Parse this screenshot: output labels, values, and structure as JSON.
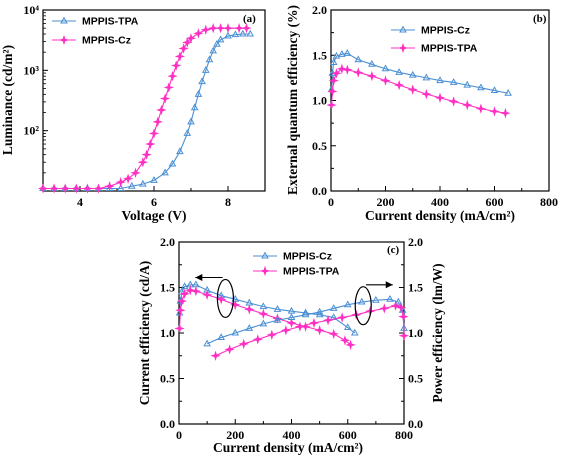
{
  "colors": {
    "tpa_cz_blue": "#4a8fd4",
    "magenta": "#ff2fc4"
  },
  "chart_data": [
    {
      "id": "a",
      "type": "line",
      "panel_label": "(a)",
      "xlabel": "Voltage (V)",
      "ylabel": "Luminance (cd/m²)",
      "xlim": [
        3,
        9
      ],
      "ylim": [
        10,
        10000
      ],
      "yscale": "log",
      "xticks": [
        "4",
        "6",
        "8"
      ],
      "yticks": [
        "10²",
        "10³",
        "10⁴"
      ],
      "legend_position": "top-left",
      "series": [
        {
          "name": "MPPIS-TPA",
          "color": "#4a8fd4",
          "marker": "triangle",
          "x": [
            3.0,
            3.3,
            3.6,
            3.9,
            4.2,
            4.5,
            4.8,
            5.1,
            5.4,
            5.7,
            6.0,
            6.3,
            6.5,
            6.7,
            6.9,
            7.0,
            7.1,
            7.2,
            7.3,
            7.4,
            7.5,
            7.6,
            7.7,
            7.8,
            8.0,
            8.2,
            8.4,
            8.6
          ],
          "y": [
            11,
            11,
            11,
            11,
            11,
            11,
            11,
            11,
            12,
            13,
            15,
            20,
            28,
            45,
            90,
            140,
            240,
            400,
            650,
            1000,
            1500,
            2100,
            2700,
            3200,
            3700,
            3900,
            4000,
            4000
          ]
        },
        {
          "name": "MPPIS-Cz",
          "color": "#ff2fc4",
          "marker": "star",
          "x": [
            3.0,
            3.3,
            3.6,
            3.9,
            4.2,
            4.5,
            4.8,
            5.1,
            5.3,
            5.5,
            5.7,
            5.8,
            5.9,
            6.0,
            6.1,
            6.2,
            6.3,
            6.4,
            6.5,
            6.6,
            6.7,
            6.8,
            6.9,
            7.0,
            7.2,
            7.4,
            7.6,
            7.8,
            8.0,
            8.3,
            8.5
          ],
          "y": [
            11,
            11,
            11,
            11,
            11,
            11,
            12,
            14,
            16,
            20,
            30,
            40,
            60,
            90,
            140,
            220,
            340,
            520,
            800,
            1200,
            1700,
            2300,
            2900,
            3400,
            4100,
            4700,
            5000,
            5000,
            5000,
            5000,
            5000
          ]
        }
      ]
    },
    {
      "id": "b",
      "type": "line",
      "panel_label": "(b)",
      "xlabel": "Current density (mA/cm²)",
      "ylabel": "External quantum efficiency (%)",
      "xlim": [
        0,
        800
      ],
      "ylim": [
        0.0,
        2.0
      ],
      "xticks": [
        "0",
        "200",
        "400",
        "600",
        "800"
      ],
      "yticks": [
        "0.0",
        "0.5",
        "1.0",
        "1.5",
        "2.0"
      ],
      "legend_position": "top-center",
      "series": [
        {
          "name": "MPPIS-Cz",
          "color": "#4a8fd4",
          "marker": "triangle",
          "x": [
            2,
            5,
            10,
            20,
            40,
            60,
            100,
            150,
            200,
            250,
            300,
            350,
            400,
            450,
            500,
            550,
            600,
            650
          ],
          "y": [
            1.12,
            1.3,
            1.42,
            1.49,
            1.51,
            1.52,
            1.45,
            1.4,
            1.35,
            1.31,
            1.28,
            1.25,
            1.22,
            1.2,
            1.17,
            1.14,
            1.11,
            1.08
          ]
        },
        {
          "name": "MPPIS-TPA",
          "color": "#ff2fc4",
          "marker": "star",
          "x": [
            2,
            5,
            10,
            20,
            40,
            60,
            100,
            150,
            200,
            250,
            300,
            350,
            400,
            450,
            500,
            550,
            600,
            640
          ],
          "y": [
            0.95,
            1.1,
            1.22,
            1.3,
            1.35,
            1.34,
            1.31,
            1.27,
            1.22,
            1.17,
            1.12,
            1.07,
            1.03,
            0.99,
            0.95,
            0.91,
            0.88,
            0.86
          ]
        }
      ]
    },
    {
      "id": "c",
      "type": "line",
      "panel_label": "(c)",
      "xlabel": "Current density (mA/cm²)",
      "ylabel": "Current efficiency (cd/A)",
      "ylabel_right": "Power efficiency (lm/W)",
      "xlim": [
        0,
        800
      ],
      "ylim": [
        0.0,
        2.0
      ],
      "ylim_right": [
        0.0,
        2.0
      ],
      "xticks": [
        "0",
        "200",
        "400",
        "600",
        "800"
      ],
      "yticks": [
        "0.0",
        "0.5",
        "1.0",
        "1.5",
        "2.0"
      ],
      "legend_position": "top-center",
      "series": [
        {
          "name": "MPPIS-Cz",
          "axis": "left",
          "color": "#4a8fd4",
          "marker": "triangle",
          "x": [
            2,
            5,
            10,
            20,
            40,
            60,
            100,
            150,
            200,
            250,
            300,
            350,
            400,
            450,
            500,
            550,
            600,
            625
          ],
          "y": [
            1.22,
            1.35,
            1.45,
            1.51,
            1.53,
            1.53,
            1.47,
            1.41,
            1.37,
            1.33,
            1.29,
            1.26,
            1.24,
            1.22,
            1.2,
            1.17,
            1.06,
            1.0
          ]
        },
        {
          "name": "MPPIS-TPA",
          "axis": "left",
          "color": "#ff2fc4",
          "marker": "star",
          "x": [
            2,
            5,
            10,
            20,
            40,
            60,
            100,
            150,
            200,
            250,
            300,
            350,
            400,
            450,
            500,
            550,
            590,
            610
          ],
          "y": [
            1.05,
            1.25,
            1.35,
            1.43,
            1.47,
            1.46,
            1.42,
            1.37,
            1.31,
            1.26,
            1.21,
            1.16,
            1.11,
            1.07,
            1.03,
            0.99,
            0.92,
            0.87
          ]
        },
        {
          "name": "MPPIS-Cz",
          "axis": "right",
          "color": "#4a8fd4",
          "marker": "triangle",
          "x": [
            100,
            150,
            200,
            250,
            300,
            350,
            400,
            450,
            500,
            550,
            600,
            650,
            700,
            750,
            780,
            795,
            800
          ],
          "y": [
            0.88,
            0.95,
            1.0,
            1.05,
            1.1,
            1.14,
            1.17,
            1.2,
            1.23,
            1.27,
            1.31,
            1.34,
            1.36,
            1.37,
            1.34,
            1.25,
            1.05
          ]
        },
        {
          "name": "MPPIS-TPA",
          "axis": "right",
          "color": "#ff2fc4",
          "marker": "star",
          "x": [
            130,
            180,
            230,
            280,
            330,
            380,
            430,
            480,
            530,
            580,
            630,
            680,
            730,
            770,
            790,
            798,
            800
          ],
          "y": [
            0.75,
            0.82,
            0.88,
            0.93,
            0.98,
            1.03,
            1.07,
            1.11,
            1.14,
            1.17,
            1.2,
            1.24,
            1.27,
            1.3,
            1.28,
            1.18,
            0.97
          ]
        }
      ]
    }
  ]
}
